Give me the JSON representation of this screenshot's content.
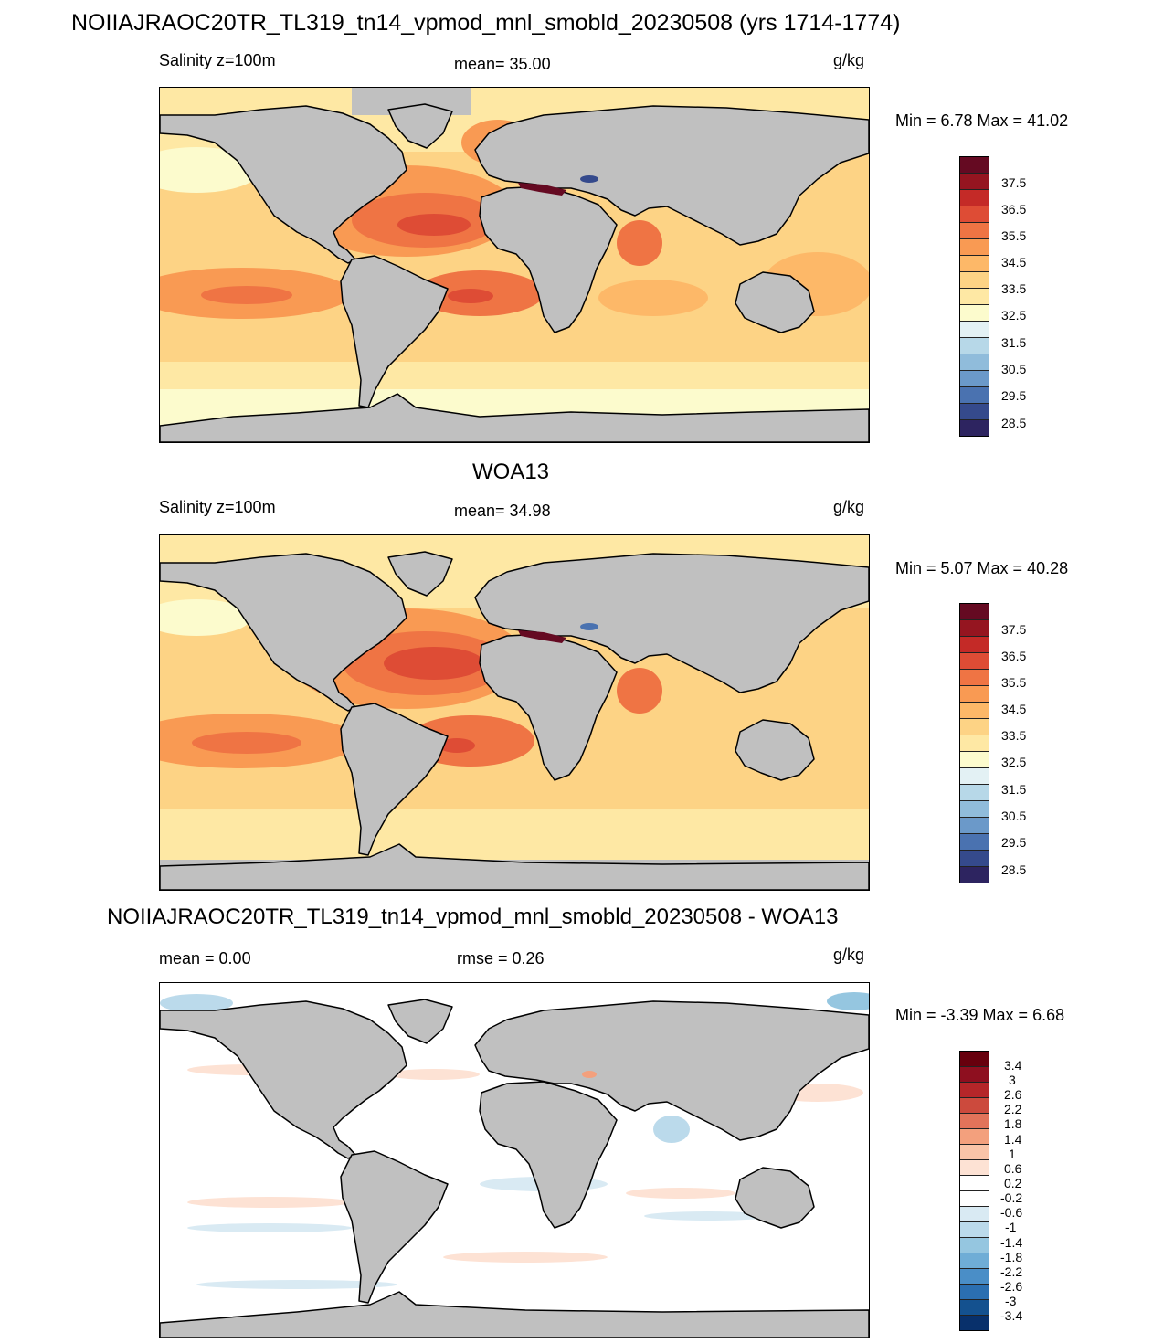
{
  "figure_title": "NOIIAJRAOC20TR_TL319_tn14_vpmod_mnl_smobld_20230508 (yrs 1714-1774)",
  "colors": {
    "land": "#c0c0c0",
    "coast": "#000000",
    "salinity_scale": [
      "#2d2460",
      "#354a8c",
      "#4a72b0",
      "#6b99c9",
      "#90bcdb",
      "#b7d8e8",
      "#e3f1f4",
      "#fcfbcd",
      "#fee8a4",
      "#fdd385",
      "#fdb868",
      "#f99a53",
      "#ef7444",
      "#de4c35",
      "#c42a27",
      "#951520",
      "#650a22"
    ],
    "diff_scale": [
      "#08306b",
      "#14518f",
      "#2b6fb1",
      "#4a8ec7",
      "#6fadd6",
      "#95c6e0",
      "#bbdaeb",
      "#d9eaf3",
      "#ffffff",
      "#ffffff",
      "#fde2d4",
      "#f9c4a8",
      "#f3a07d",
      "#e2735a",
      "#cc4a3d",
      "#b52629",
      "#8e0f1f",
      "#67000d"
    ]
  },
  "panels": [
    {
      "title": "",
      "left_label": "Salinity z=100m",
      "center_label": "mean=  35.00",
      "units": "g/kg",
      "minmax": "Min =   6.78 Max =  41.02",
      "colorbar_ticks": [
        "37.5",
        "36.5",
        "35.5",
        "34.5",
        "33.5",
        "32.5",
        "31.5",
        "30.5",
        "29.5",
        "28.5"
      ]
    },
    {
      "title": "WOA13",
      "left_label": "Salinity z=100m",
      "center_label": "mean=  34.98",
      "units": "g/kg",
      "minmax": "Min =   5.07 Max =  40.28",
      "colorbar_ticks": [
        "37.5",
        "36.5",
        "35.5",
        "34.5",
        "33.5",
        "32.5",
        "31.5",
        "30.5",
        "29.5",
        "28.5"
      ]
    },
    {
      "title": "NOIIAJRAOC20TR_TL319_tn14_vpmod_mnl_smobld_20230508 - WOA13",
      "left_label": "mean =   0.00",
      "center_label": "rmse =   0.26",
      "units": "g/kg",
      "minmax": "Min =  -3.39 Max =   6.68",
      "colorbar_ticks": [
        "3.4",
        "3",
        "2.6",
        "2.2",
        "1.8",
        "1.4",
        "1",
        "0.6",
        "0.2",
        "-0.2",
        "-0.6",
        "-1",
        "-1.4",
        "-1.8",
        "-2.2",
        "-2.6",
        "-3",
        "-3.4"
      ]
    }
  ]
}
